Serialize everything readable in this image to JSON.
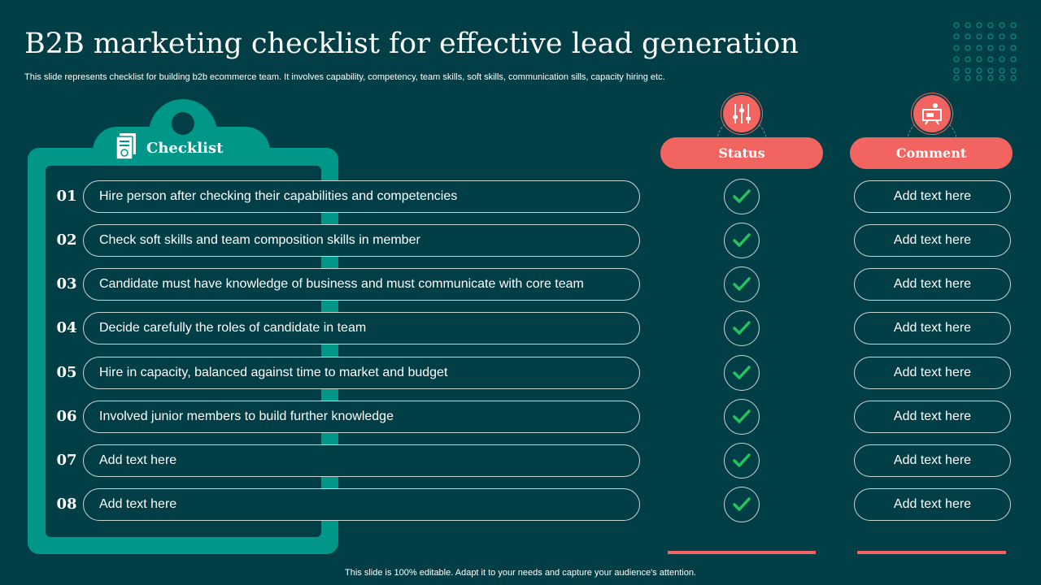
{
  "title": "B2B marketing checklist for effective lead generation",
  "subtitle": "This slide represents checklist for building b2b ecommerce team. It involves capability, competency, team skills, soft skills, communication sills, capacity hiring etc.",
  "checklist": {
    "label": "Checklist",
    "icon": "checklist-icon"
  },
  "columns": {
    "status": {
      "label": "Status",
      "icon": "tools-icon"
    },
    "comment": {
      "label": "Comment",
      "icon": "presentation-icon"
    }
  },
  "rows": [
    {
      "num": "01",
      "text": "Hire person after checking their capabilities and competencies",
      "status": "checked",
      "comment": "Add text here"
    },
    {
      "num": "02",
      "text": "Check soft skills and team composition skills in member",
      "status": "checked",
      "comment": "Add text here"
    },
    {
      "num": "03",
      "text": "Candidate must have knowledge of business and must communicate with core team",
      "status": "checked",
      "comment": "Add text here"
    },
    {
      "num": "04",
      "text": "Decide carefully  the roles of candidate in team",
      "status": "checked",
      "comment": "Add text here"
    },
    {
      "num": "05",
      "text": "Hire in capacity, balanced against time to market and budget",
      "status": "checked",
      "comment": "Add text here"
    },
    {
      "num": "06",
      "text": "Involved  junior members to build further  knowledge",
      "status": "checked",
      "comment": "Add text here"
    },
    {
      "num": "07",
      "text": "Add text here",
      "status": "checked",
      "comment": "Add text here"
    },
    {
      "num": "08",
      "text": "Add text here",
      "status": "checked",
      "comment": "Add text here"
    }
  ],
  "footer": "This slide is 100% editable. Adapt it to your needs and capture your audience's attention.",
  "colors": {
    "background": "#023e46",
    "teal": "#009688",
    "accent": "#f2645f",
    "check": "#22c55e"
  }
}
